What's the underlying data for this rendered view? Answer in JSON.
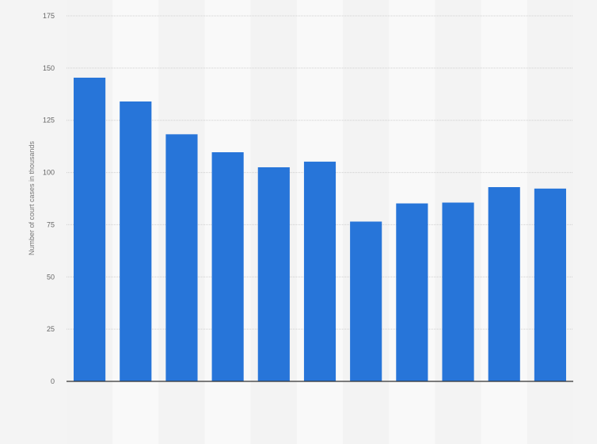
{
  "chart_data": {
    "type": "bar",
    "title": "",
    "xlabel": "",
    "ylabel": "Number of court cases in thousands",
    "categories": [
      "",
      "",
      "",
      "",
      "",
      "",
      "",
      "",
      "",
      "",
      ""
    ],
    "values": [
      145.4,
      134.0,
      118.3,
      109.7,
      102.5,
      105.2,
      76.5,
      85.2,
      85.6,
      93.0,
      92.3
    ],
    "ylim": [
      0,
      175
    ],
    "yticks": [
      "0",
      "25",
      "50",
      "75",
      "100",
      "125",
      "150",
      "175"
    ],
    "grid": true,
    "legend": "none",
    "colors": {
      "bar": "#2775d9",
      "background": "#f4f4f4",
      "grid": "#d0d0d0",
      "axis": "#333333"
    }
  }
}
